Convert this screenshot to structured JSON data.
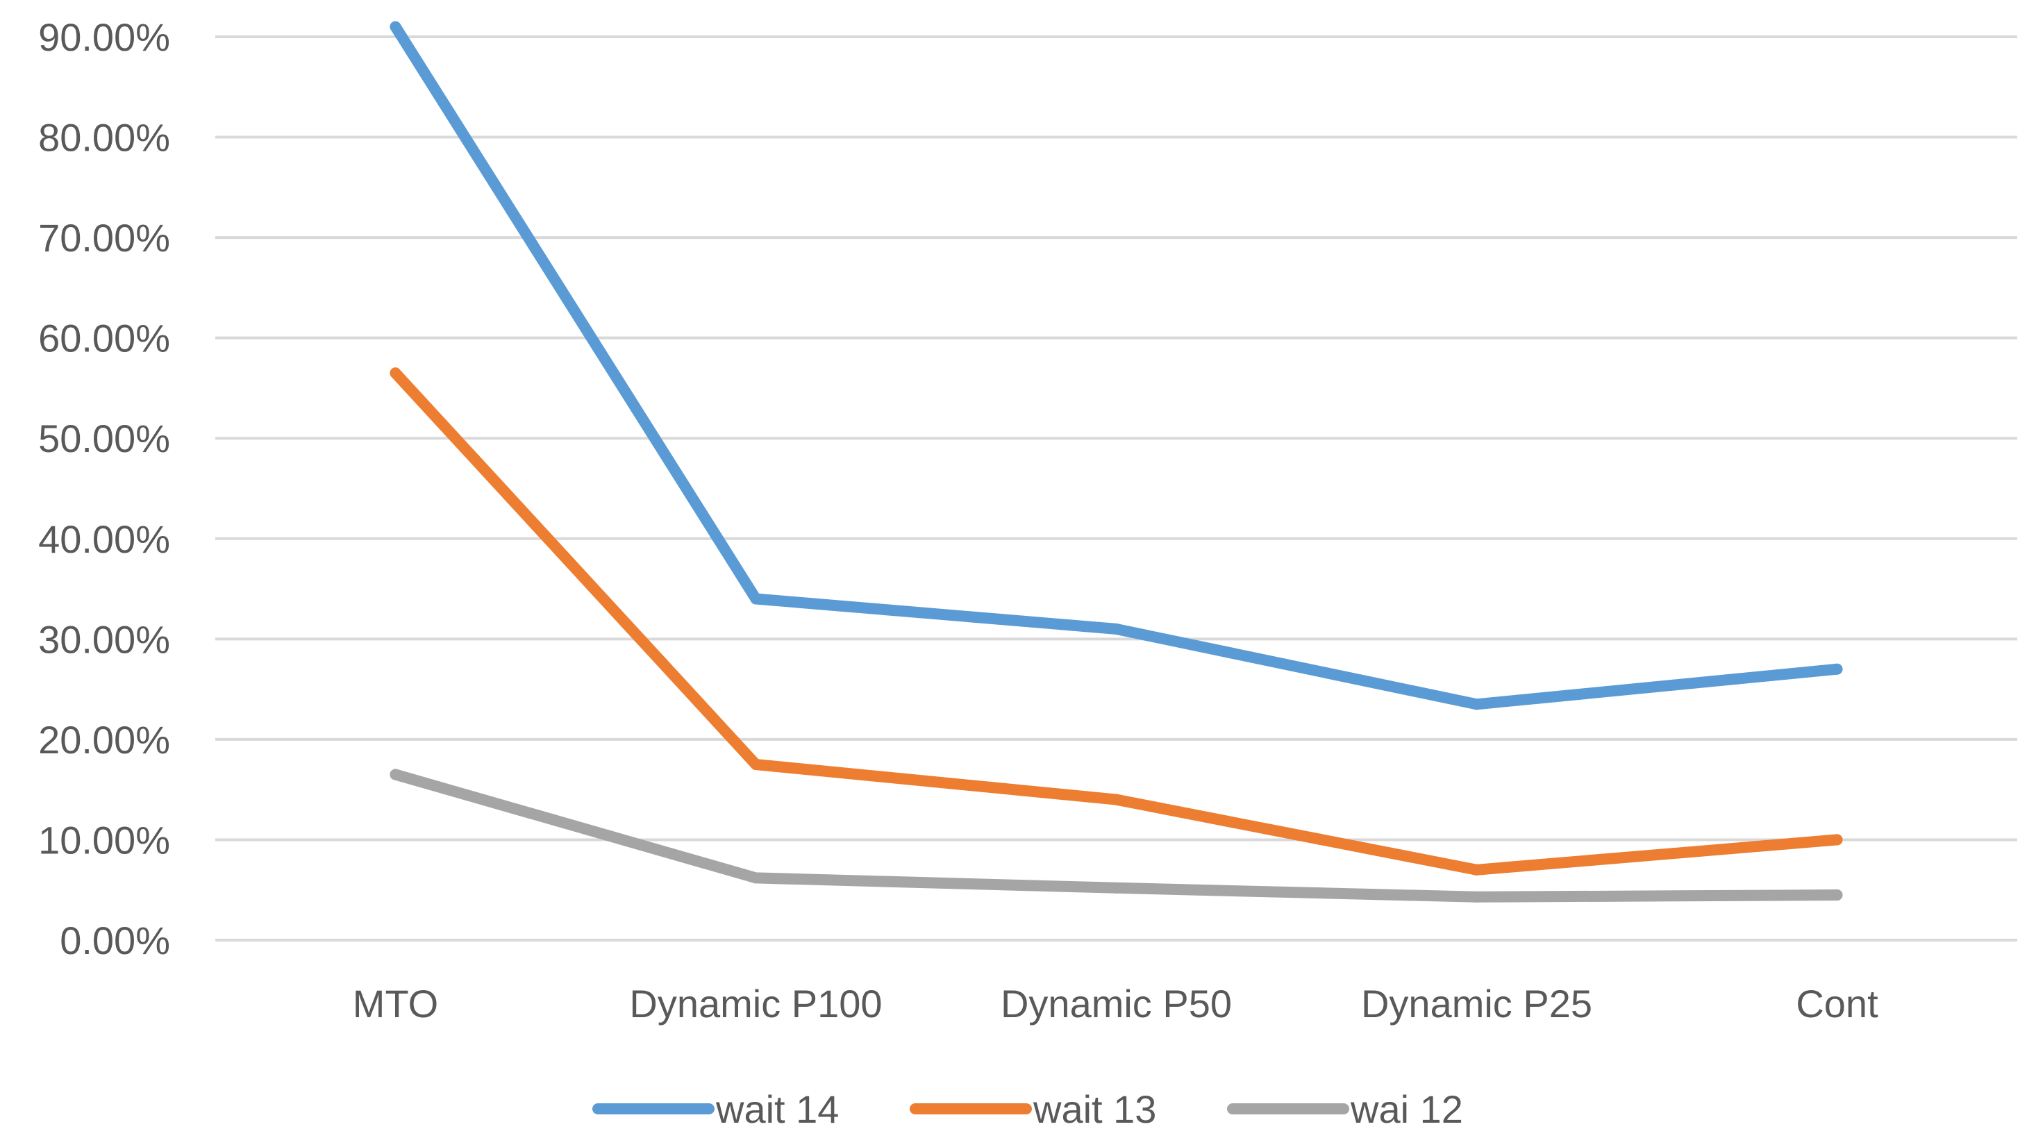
{
  "chart_data": {
    "type": "line",
    "title": "",
    "xlabel": "",
    "ylabel": "",
    "categories": [
      "MTO",
      "Dynamic P100",
      "Dynamic P50",
      "Dynamic P25",
      "Cont"
    ],
    "ylim": [
      0,
      90
    ],
    "yticks": [
      0,
      10,
      20,
      30,
      40,
      50,
      60,
      70,
      80,
      90
    ],
    "ytick_labels": [
      "0.00%",
      "10.00%",
      "20.00%",
      "30.00%",
      "40.00%",
      "50.00%",
      "60.00%",
      "70.00%",
      "80.00%",
      "90.00%"
    ],
    "grid": true,
    "legend_position": "bottom",
    "series": [
      {
        "name": "wait 14",
        "color": "#5B9BD5",
        "values": [
          91.0,
          34.0,
          31.0,
          23.5,
          27.0
        ]
      },
      {
        "name": "wait 13",
        "color": "#ED7D31",
        "values": [
          56.5,
          17.5,
          14.0,
          7.0,
          10.0
        ]
      },
      {
        "name": "wai 12",
        "color": "#A5A5A5",
        "values": [
          16.5,
          6.2,
          5.2,
          4.3,
          4.5
        ]
      }
    ]
  }
}
